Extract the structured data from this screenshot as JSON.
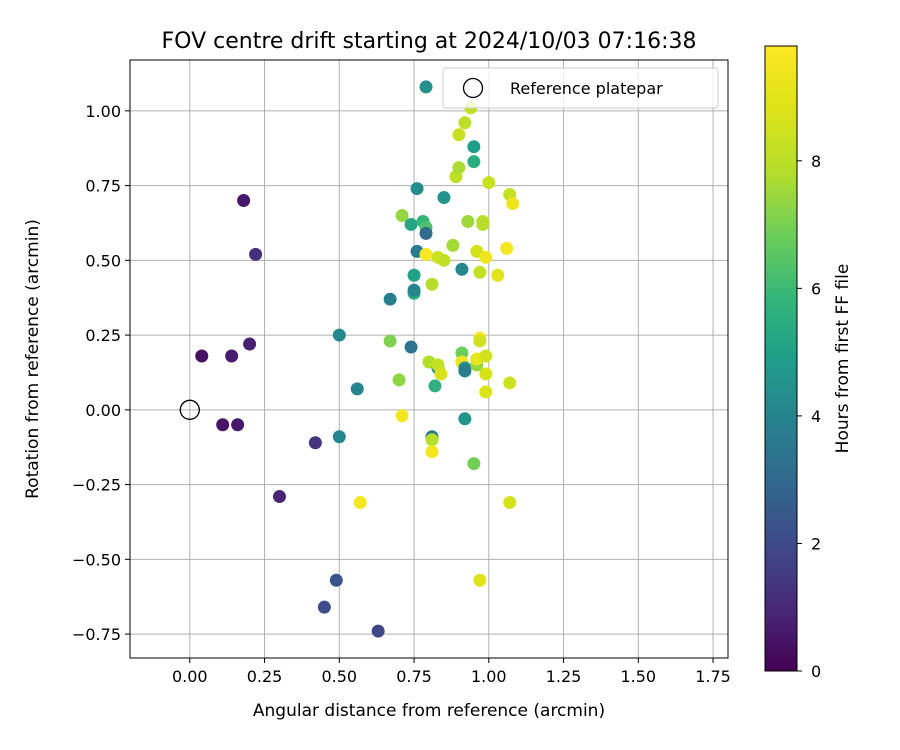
{
  "chart_data": {
    "type": "scatter",
    "title": "FOV centre drift starting at 2024/10/03 07:16:38",
    "xlabel": "Angular distance from reference (arcmin)",
    "ylabel": "Rotation from reference (arcmin)",
    "xlim": [
      -0.2,
      1.8
    ],
    "ylim": [
      -0.83,
      1.17
    ],
    "xticks": [
      "0.00",
      "0.25",
      "0.50",
      "0.75",
      "1.00",
      "1.25",
      "1.50",
      "1.75"
    ],
    "xtick_values": [
      0,
      0.25,
      0.5,
      0.75,
      1.0,
      1.25,
      1.5,
      1.75
    ],
    "yticks": [
      "−0.75",
      "−0.50",
      "−0.25",
      "0.00",
      "0.25",
      "0.50",
      "0.75",
      "1.00"
    ],
    "ytick_values": [
      -0.75,
      -0.5,
      -0.25,
      0,
      0.25,
      0.5,
      0.75,
      1.0
    ],
    "grid": true,
    "legend": {
      "position": "top-right",
      "entry": "Reference platepar"
    },
    "colorbar": {
      "label": "Hours from first FF file",
      "range": [
        0,
        9.8
      ],
      "colormap": "viridis",
      "ticks": [
        "0",
        "2",
        "4",
        "6",
        "8"
      ],
      "tick_values": [
        0,
        2,
        4,
        6,
        8
      ]
    },
    "reference_point": {
      "x": 0.0,
      "y": 0.0
    },
    "points": [
      {
        "x": 0.04,
        "y": 0.18,
        "h": 0.4
      },
      {
        "x": 0.14,
        "y": 0.18,
        "h": 0.7
      },
      {
        "x": 0.2,
        "y": 0.22,
        "h": 0.8
      },
      {
        "x": 0.18,
        "y": 0.7,
        "h": 0.6
      },
      {
        "x": 0.22,
        "y": 0.52,
        "h": 1.2
      },
      {
        "x": 0.11,
        "y": -0.05,
        "h": 0.5
      },
      {
        "x": 0.16,
        "y": -0.05,
        "h": 0.6
      },
      {
        "x": 0.3,
        "y": -0.29,
        "h": 0.9
      },
      {
        "x": 0.42,
        "y": -0.11,
        "h": 1.3
      },
      {
        "x": 0.45,
        "y": -0.66,
        "h": 2.1
      },
      {
        "x": 0.49,
        "y": -0.57,
        "h": 2.3
      },
      {
        "x": 0.63,
        "y": -0.74,
        "h": 1.9
      },
      {
        "x": 0.5,
        "y": -0.09,
        "h": 4.1
      },
      {
        "x": 0.5,
        "y": 0.25,
        "h": 4.2
      },
      {
        "x": 0.56,
        "y": 0.07,
        "h": 4.0
      },
      {
        "x": 0.57,
        "y": -0.31,
        "h": 9.6
      },
      {
        "x": 0.67,
        "y": 0.37,
        "h": 3.8
      },
      {
        "x": 0.67,
        "y": 0.23,
        "h": 7.1
      },
      {
        "x": 0.7,
        "y": 0.1,
        "h": 7.3
      },
      {
        "x": 0.71,
        "y": -0.02,
        "h": 9.6
      },
      {
        "x": 0.71,
        "y": 0.65,
        "h": 7.4
      },
      {
        "x": 0.74,
        "y": 0.62,
        "h": 5.2
      },
      {
        "x": 0.74,
        "y": 0.21,
        "h": 3.4
      },
      {
        "x": 0.75,
        "y": 0.39,
        "h": 5.4
      },
      {
        "x": 0.75,
        "y": 0.4,
        "h": 4.0
      },
      {
        "x": 0.75,
        "y": 0.45,
        "h": 5.1
      },
      {
        "x": 0.76,
        "y": 0.53,
        "h": 3.7
      },
      {
        "x": 0.76,
        "y": 0.74,
        "h": 4.3
      },
      {
        "x": 0.78,
        "y": 0.63,
        "h": 5.8
      },
      {
        "x": 0.79,
        "y": 0.61,
        "h": 6.3
      },
      {
        "x": 0.79,
        "y": 0.59,
        "h": 3.1
      },
      {
        "x": 0.79,
        "y": 0.52,
        "h": 9.7
      },
      {
        "x": 0.79,
        "y": 1.08,
        "h": 4.4
      },
      {
        "x": 0.8,
        "y": 0.16,
        "h": 7.8
      },
      {
        "x": 0.81,
        "y": -0.09,
        "h": 3.6
      },
      {
        "x": 0.81,
        "y": -0.1,
        "h": 7.9
      },
      {
        "x": 0.81,
        "y": -0.14,
        "h": 9.5
      },
      {
        "x": 0.81,
        "y": 0.42,
        "h": 7.9
      },
      {
        "x": 0.82,
        "y": 0.08,
        "h": 5.6
      },
      {
        "x": 0.83,
        "y": 0.14,
        "h": 4.1
      },
      {
        "x": 0.83,
        "y": 0.15,
        "h": 8.2
      },
      {
        "x": 0.83,
        "y": 0.51,
        "h": 8.4
      },
      {
        "x": 0.84,
        "y": 0.12,
        "h": 8.7
      },
      {
        "x": 0.85,
        "y": 0.5,
        "h": 8.1
      },
      {
        "x": 0.85,
        "y": 0.71,
        "h": 4.5
      },
      {
        "x": 0.88,
        "y": 0.55,
        "h": 7.6
      },
      {
        "x": 0.89,
        "y": 0.78,
        "h": 8.0
      },
      {
        "x": 0.9,
        "y": 0.81,
        "h": 7.7
      },
      {
        "x": 0.9,
        "y": 0.92,
        "h": 8.3
      },
      {
        "x": 0.91,
        "y": 0.47,
        "h": 4.1
      },
      {
        "x": 0.91,
        "y": 0.19,
        "h": 6.8
      },
      {
        "x": 0.91,
        "y": 0.16,
        "h": 9.4
      },
      {
        "x": 0.92,
        "y": 0.14,
        "h": 4.4
      },
      {
        "x": 0.92,
        "y": 0.13,
        "h": 3.8
      },
      {
        "x": 0.92,
        "y": 0.96,
        "h": 8.0
      },
      {
        "x": 0.92,
        "y": -0.03,
        "h": 4.6
      },
      {
        "x": 0.93,
        "y": 0.63,
        "h": 7.5
      },
      {
        "x": 0.94,
        "y": 1.01,
        "h": 8.1
      },
      {
        "x": 0.95,
        "y": 0.88,
        "h": 4.9
      },
      {
        "x": 0.95,
        "y": 0.83,
        "h": 5.5
      },
      {
        "x": 0.95,
        "y": -0.18,
        "h": 6.9
      },
      {
        "x": 0.96,
        "y": 0.53,
        "h": 8.6
      },
      {
        "x": 0.96,
        "y": 0.15,
        "h": 7.4
      },
      {
        "x": 0.96,
        "y": 0.17,
        "h": 9.2
      },
      {
        "x": 0.97,
        "y": 0.24,
        "h": 9.7
      },
      {
        "x": 0.97,
        "y": 0.23,
        "h": 8.5
      },
      {
        "x": 0.97,
        "y": -0.57,
        "h": 8.9
      },
      {
        "x": 0.97,
        "y": 0.46,
        "h": 8.2
      },
      {
        "x": 0.98,
        "y": 0.63,
        "h": 8.0
      },
      {
        "x": 0.98,
        "y": 0.62,
        "h": 7.9
      },
      {
        "x": 0.99,
        "y": 0.18,
        "h": 8.6
      },
      {
        "x": 0.99,
        "y": 0.12,
        "h": 8.7
      },
      {
        "x": 0.99,
        "y": 0.06,
        "h": 8.8
      },
      {
        "x": 0.99,
        "y": 0.51,
        "h": 9.4
      },
      {
        "x": 1.0,
        "y": 0.76,
        "h": 8.3
      },
      {
        "x": 1.03,
        "y": 0.45,
        "h": 9.0
      },
      {
        "x": 1.06,
        "y": 0.54,
        "h": 9.6
      },
      {
        "x": 1.07,
        "y": 0.72,
        "h": 8.2
      },
      {
        "x": 1.07,
        "y": 0.09,
        "h": 8.4
      },
      {
        "x": 1.07,
        "y": -0.31,
        "h": 8.6
      },
      {
        "x": 1.08,
        "y": 0.69,
        "h": 9.3
      }
    ]
  }
}
